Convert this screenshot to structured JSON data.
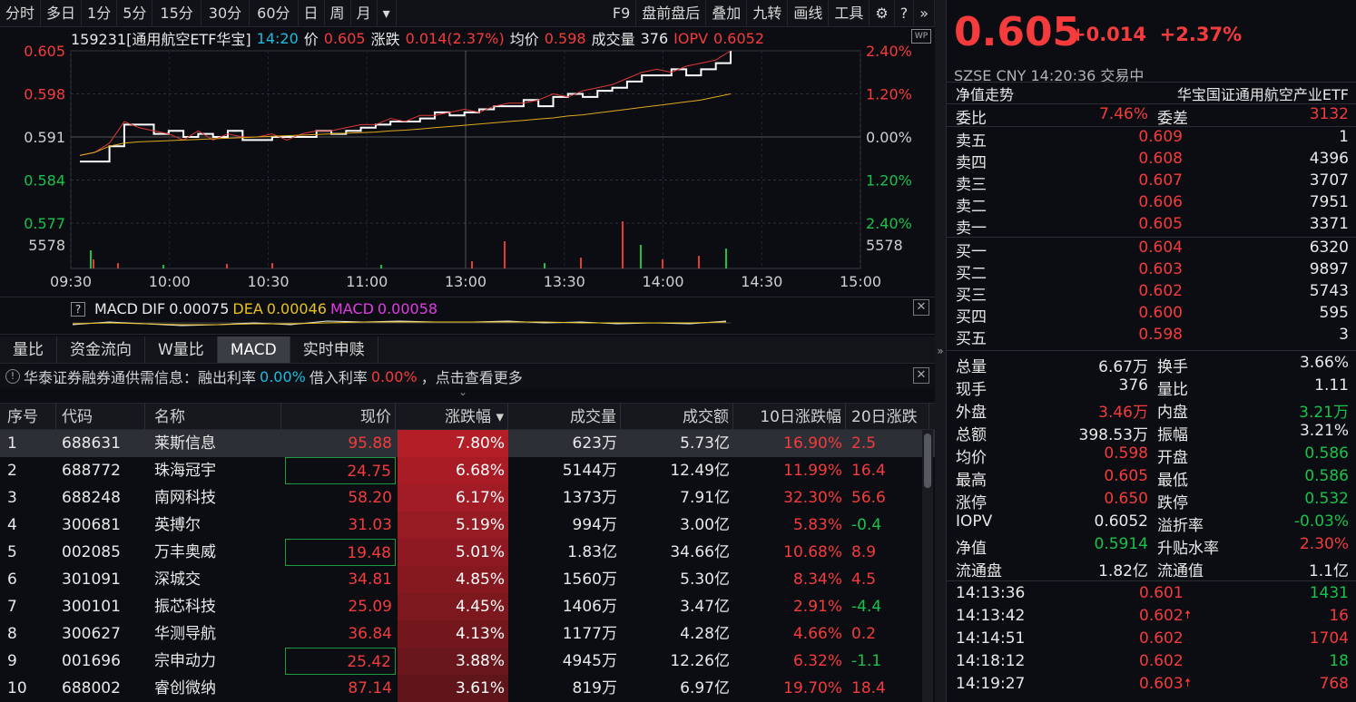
{
  "toolbar": {
    "left": [
      "分时",
      "多日",
      "1分",
      "5分",
      "15分",
      "30分",
      "60分",
      "日",
      "周",
      "月",
      "▾"
    ],
    "right": [
      "F9",
      "盘前盘后",
      "叠加",
      "九转",
      "画线",
      "工具"
    ],
    "icons": [
      "gear-icon",
      "help-icon",
      "double-chevron-right-icon"
    ]
  },
  "quote_line": {
    "code_name": "159231[通用航空ETF华宝]",
    "time": "14:20",
    "price_label": "价",
    "price": "0.605",
    "change_label": "涨跌",
    "change": "0.014(2.37%)",
    "avg_label": "均价",
    "avg": "0.598",
    "volume_label": "成交量",
    "volume": "376",
    "iopv_label": "IOPV",
    "iopv": "0.6052"
  },
  "chart_data": {
    "type": "line",
    "y_left_ticks": [
      "0.605",
      "0.598",
      "0.591",
      "0.584",
      "0.577"
    ],
    "y_right_ticks": [
      "2.40%",
      "1.20%",
      "0.00%",
      "1.20%",
      "2.40%"
    ],
    "volume_tick": "5578",
    "x_ticks": [
      "09:30",
      "10:00",
      "10:30",
      "11:00",
      "13:00",
      "13:30",
      "14:00",
      "14:30",
      "15:00"
    ],
    "ylim": [
      0.577,
      0.605
    ],
    "series": [
      {
        "values": [
          0.587,
          0.587,
          0.5895,
          0.593,
          0.593,
          0.5915,
          0.592,
          0.591,
          0.5915,
          0.591,
          0.592,
          0.5905,
          0.5905,
          0.591,
          0.591,
          0.591,
          0.592,
          0.5915,
          0.592,
          0.5925,
          0.593,
          0.5935,
          0.5935,
          0.594,
          0.595,
          0.5945,
          0.595,
          0.5955,
          0.596,
          0.596,
          0.597,
          0.596,
          0.5975,
          0.598,
          0.5975,
          0.5985,
          0.599,
          0.6,
          0.601,
          0.601,
          0.602,
          0.601,
          0.602,
          0.603,
          0.605
        ]
      },
      {
        "values": [
          0.588,
          0.5885,
          0.59,
          0.5935,
          0.5925,
          0.592,
          0.5915,
          0.5905,
          0.592,
          0.5905,
          0.5915,
          0.591,
          0.591,
          0.5915,
          0.5905,
          0.5915,
          0.592,
          0.592,
          0.5925,
          0.593,
          0.593,
          0.594,
          0.5935,
          0.5945,
          0.5945,
          0.595,
          0.5955,
          0.595,
          0.596,
          0.5965,
          0.5965,
          0.597,
          0.598,
          0.5975,
          0.5985,
          0.599,
          0.5995,
          0.6005,
          0.6015,
          0.602,
          0.6015,
          0.6025,
          0.603,
          0.6035,
          0.605
        ]
      },
      {
        "values": [
          0.588,
          0.5885,
          0.5895,
          0.59,
          0.5902,
          0.5903,
          0.5904,
          0.5905,
          0.5906,
          0.5907,
          0.5908,
          0.5909,
          0.591,
          0.5911,
          0.5912,
          0.5913,
          0.5914,
          0.5915,
          0.5916,
          0.5917,
          0.5918,
          0.592,
          0.5921,
          0.5923,
          0.5925,
          0.5927,
          0.5929,
          0.5931,
          0.5933,
          0.5935,
          0.5937,
          0.5939,
          0.5941,
          0.5944,
          0.5946,
          0.5949,
          0.5952,
          0.5955,
          0.5958,
          0.5961,
          0.5964,
          0.5967,
          0.597,
          0.5975,
          0.598
        ]
      }
    ]
  },
  "macd": {
    "help": "?",
    "title": "MACD",
    "dif_label": "DIF",
    "dif": "0.00075",
    "dea_label": "DEA",
    "dea": "0.00046",
    "macd_label": "MACD",
    "macd": "0.00058"
  },
  "tabs": [
    "量比",
    "资金流向",
    "W量比",
    "MACD",
    "实时申赎"
  ],
  "notice": {
    "text": "华泰证券融券通供需信息：融出利率",
    "rate1": "0.00%",
    "mid": "借入利率",
    "rate2": "0.00%",
    "tail": "，点击查看更多"
  },
  "table": {
    "headers": [
      "序号",
      "代码",
      "名称",
      "现价",
      "涨跌幅 ▾",
      "成交量",
      "成交额",
      "10日涨跌幅",
      "20日涨跌"
    ],
    "rows": [
      {
        "idx": "1",
        "code": "688631",
        "name": "莱斯信息",
        "price": "95.88",
        "pct": "7.80%",
        "vol": "623万",
        "amt": "5.73亿",
        "d10": "16.90%",
        "d20": "2.5"
      },
      {
        "idx": "2",
        "code": "688772",
        "name": "珠海冠宇",
        "price": "24.75",
        "pct": "6.68%",
        "vol": "5144万",
        "amt": "12.49亿",
        "d10": "11.99%",
        "d20": "16.4"
      },
      {
        "idx": "3",
        "code": "688248",
        "name": "南网科技",
        "price": "58.20",
        "pct": "6.17%",
        "vol": "1373万",
        "amt": "7.91亿",
        "d10": "32.30%",
        "d20": "56.6"
      },
      {
        "idx": "4",
        "code": "300681",
        "name": "英搏尔",
        "price": "31.03",
        "pct": "5.19%",
        "vol": "994万",
        "amt": "3.00亿",
        "d10": "5.83%",
        "d20": "-0.4"
      },
      {
        "idx": "5",
        "code": "002085",
        "name": "万丰奥威",
        "price": "19.48",
        "pct": "5.01%",
        "vol": "1.83亿",
        "amt": "34.66亿",
        "d10": "10.68%",
        "d20": "8.9"
      },
      {
        "idx": "6",
        "code": "301091",
        "name": "深城交",
        "price": "34.81",
        "pct": "4.85%",
        "vol": "1560万",
        "amt": "5.30亿",
        "d10": "8.34%",
        "d20": "4.5"
      },
      {
        "idx": "7",
        "code": "300101",
        "name": "振芯科技",
        "price": "25.09",
        "pct": "4.45%",
        "vol": "1406万",
        "amt": "3.47亿",
        "d10": "2.91%",
        "d20": "-4.4"
      },
      {
        "idx": "8",
        "code": "300627",
        "name": "华测导航",
        "price": "36.84",
        "pct": "4.13%",
        "vol": "1177万",
        "amt": "4.28亿",
        "d10": "4.66%",
        "d20": "0.2"
      },
      {
        "idx": "9",
        "code": "001696",
        "name": "宗申动力",
        "price": "25.42",
        "pct": "3.88%",
        "vol": "4945万",
        "amt": "12.26亿",
        "d10": "6.32%",
        "d20": "-1.1"
      },
      {
        "idx": "10",
        "code": "688002",
        "name": "睿创微纳",
        "price": "87.14",
        "pct": "3.61%",
        "vol": "819万",
        "amt": "6.97亿",
        "d10": "19.70%",
        "d20": "18.4"
      }
    ]
  },
  "right": {
    "price": "0.605",
    "change": "+0.014",
    "pct": "+2.37%",
    "market": "SZSE  CNY  14:20:36  交易中",
    "nav_label": "净值走势",
    "fund_name": "华宝国证通用航空产业ETF",
    "weibi_label": "委比",
    "weibi": "7.46%",
    "weicha_label": "委差",
    "weicha": "3132",
    "asks": [
      {
        "label": "卖五",
        "price": "0.609",
        "vol": "1"
      },
      {
        "label": "卖四",
        "price": "0.608",
        "vol": "4396"
      },
      {
        "label": "卖三",
        "price": "0.607",
        "vol": "3707"
      },
      {
        "label": "卖二",
        "price": "0.606",
        "vol": "7951"
      },
      {
        "label": "卖一",
        "price": "0.605",
        "vol": "3371"
      }
    ],
    "bids": [
      {
        "label": "买一",
        "price": "0.604",
        "vol": "6320"
      },
      {
        "label": "买二",
        "price": "0.603",
        "vol": "9897"
      },
      {
        "label": "买三",
        "price": "0.602",
        "vol": "5743"
      },
      {
        "label": "买四",
        "price": "0.600",
        "vol": "595"
      },
      {
        "label": "买五",
        "price": "0.598",
        "vol": "3"
      }
    ],
    "stats": [
      {
        "l1": "总量",
        "v1": "6.67万",
        "c1": "white",
        "l2": "换手",
        "v2": "3.66%",
        "c2": "white"
      },
      {
        "l1": "现手",
        "v1": "376",
        "c1": "white",
        "l2": "量比",
        "v2": "1.11",
        "c2": "white"
      },
      {
        "l1": "外盘",
        "v1": "3.46万",
        "c1": "red",
        "l2": "内盘",
        "v2": "3.21万",
        "c2": "green"
      },
      {
        "l1": "总额",
        "v1": "398.53万",
        "c1": "white",
        "l2": "振幅",
        "v2": "3.21%",
        "c2": "white"
      },
      {
        "l1": "均价",
        "v1": "0.598",
        "c1": "red",
        "l2": "开盘",
        "v2": "0.586",
        "c2": "green"
      },
      {
        "l1": "最高",
        "v1": "0.605",
        "c1": "red",
        "l2": "最低",
        "v2": "0.586",
        "c2": "green"
      },
      {
        "l1": "涨停",
        "v1": "0.650",
        "c1": "red",
        "l2": "跌停",
        "v2": "0.532",
        "c2": "green"
      },
      {
        "l1": "IOPV",
        "v1": "0.6052",
        "c1": "white",
        "l2": "溢折率",
        "v2": "-0.03%",
        "c2": "green"
      },
      {
        "l1": "净值",
        "v1": "0.5914",
        "c1": "green",
        "l2": "升贴水率",
        "v2": "2.30%",
        "c2": "red"
      },
      {
        "l1": "流通盘",
        "v1": "1.82亿",
        "c1": "white",
        "l2": "流通值",
        "v2": "1.1亿",
        "c2": "white"
      }
    ],
    "ticks": [
      {
        "time": "14:13:36",
        "price": "0.601",
        "arrow": "",
        "vol": "1431",
        "vc": "green"
      },
      {
        "time": "14:13:42",
        "price": "0.602",
        "arrow": "🠅",
        "vol": "16",
        "vc": "red"
      },
      {
        "time": "14:14:51",
        "price": "0.602",
        "arrow": "",
        "vol": "1704",
        "vc": "red"
      },
      {
        "time": "14:18:12",
        "price": "0.602",
        "arrow": "",
        "vol": "18",
        "vc": "green"
      },
      {
        "time": "14:19:27",
        "price": "0.603",
        "arrow": "🠅",
        "vol": "768",
        "vc": "red"
      }
    ]
  }
}
